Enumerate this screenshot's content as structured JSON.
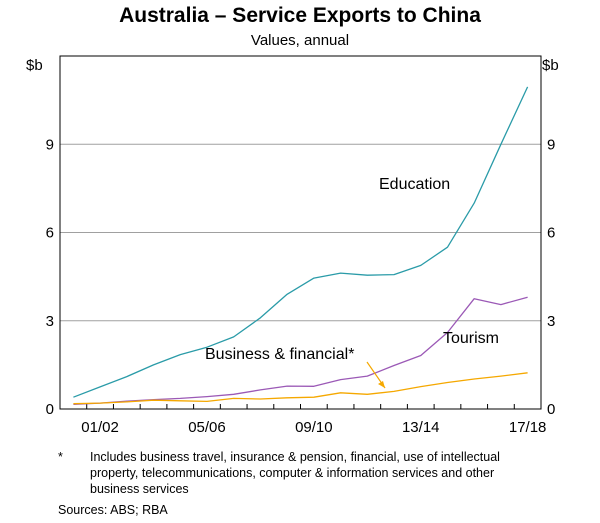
{
  "header": {
    "title": "Australia – Service Exports to China",
    "subtitle": "Values, annual"
  },
  "footnote": {
    "mark": "*",
    "text": "Includes business travel, insurance & pension, financial, use of intellectual property, telecommunications, computer & information services and other business services"
  },
  "sources": "Sources:   ABS; RBA",
  "colors": {
    "education": "#2a9ba8",
    "tourism": "#9b59b6",
    "business": "#f5a800",
    "grid": "#a0a0a0"
  },
  "chart_data": {
    "type": "line",
    "x": [
      "00/01",
      "01/02",
      "02/03",
      "03/04",
      "04/05",
      "05/06",
      "06/07",
      "07/08",
      "08/09",
      "09/10",
      "10/11",
      "11/12",
      "12/13",
      "13/14",
      "14/15",
      "15/16",
      "16/17",
      "17/18"
    ],
    "x_tick_labels": [
      "01/02",
      "05/06",
      "09/10",
      "13/14",
      "17/18"
    ],
    "x_tick_positions": [
      "01/02",
      "05/06",
      "09/10",
      "13/14",
      "17/18"
    ],
    "y_unit_left": "$b",
    "y_unit_right": "$b",
    "y_ticks": [
      0,
      3,
      6,
      9
    ],
    "ylim": [
      0,
      12
    ],
    "grid": true,
    "series": [
      {
        "name": "Education",
        "key": "education",
        "values": [
          0.4,
          0.75,
          1.1,
          1.5,
          1.85,
          2.1,
          2.45,
          3.1,
          3.9,
          4.45,
          4.62,
          4.55,
          4.57,
          4.88,
          5.5,
          7.0,
          9.0,
          10.95
        ]
      },
      {
        "name": "Tourism",
        "key": "tourism",
        "values": [
          0.16,
          0.2,
          0.27,
          0.32,
          0.36,
          0.42,
          0.5,
          0.65,
          0.78,
          0.77,
          1.0,
          1.12,
          1.48,
          1.82,
          2.6,
          3.75,
          3.55,
          3.8
        ]
      },
      {
        "name": "Business & financial*",
        "key": "business",
        "values": [
          0.18,
          0.2,
          0.24,
          0.3,
          0.28,
          0.26,
          0.36,
          0.34,
          0.38,
          0.4,
          0.55,
          0.5,
          0.6,
          0.76,
          0.9,
          1.02,
          1.12,
          1.23
        ]
      }
    ]
  }
}
